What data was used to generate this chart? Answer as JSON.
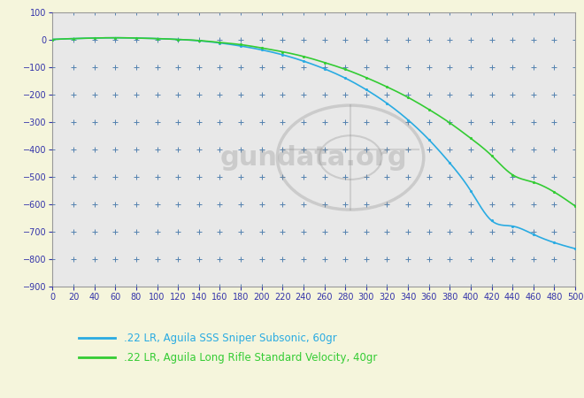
{
  "background_color": "#f5f5dc",
  "plot_bg_color": "#e8e8e8",
  "grid_color": "#4477aa",
  "xlim": [
    0,
    500
  ],
  "ylim": [
    -900,
    100
  ],
  "xticks": [
    0,
    20,
    40,
    60,
    80,
    100,
    120,
    140,
    160,
    180,
    200,
    220,
    240,
    260,
    280,
    300,
    320,
    340,
    360,
    380,
    400,
    420,
    440,
    460,
    480,
    500
  ],
  "yticks": [
    100,
    0,
    -100,
    -200,
    -300,
    -400,
    -500,
    -600,
    -700,
    -800,
    -900
  ],
  "line1_color": "#29abe2",
  "line2_color": "#33cc33",
  "line1_label": ".22 LR, Aguila SSS Sniper Subsonic, 60gr",
  "line2_label": ".22 LR, Aguila Long Rifle Standard Velocity, 40gr",
  "watermark_text": "gundata.org",
  "line1_x": [
    0,
    20,
    40,
    60,
    80,
    100,
    120,
    140,
    160,
    180,
    200,
    220,
    240,
    260,
    280,
    300,
    320,
    340,
    360,
    380,
    400,
    420,
    440,
    460,
    480,
    500
  ],
  "line1_y": [
    0,
    3,
    5,
    6,
    5,
    3,
    0,
    -5,
    -13,
    -24,
    -38,
    -56,
    -79,
    -107,
    -141,
    -183,
    -233,
    -293,
    -365,
    -450,
    -551,
    -660,
    -680,
    -710,
    -740,
    -762
  ],
  "line2_x": [
    0,
    20,
    40,
    60,
    80,
    100,
    120,
    140,
    160,
    180,
    200,
    220,
    240,
    260,
    280,
    300,
    320,
    340,
    360,
    380,
    400,
    420,
    440,
    460,
    480,
    500
  ],
  "line2_y": [
    0,
    3,
    5,
    6,
    5,
    3,
    0,
    -4,
    -11,
    -19,
    -31,
    -45,
    -62,
    -84,
    -109,
    -139,
    -173,
    -211,
    -255,
    -304,
    -360,
    -423,
    -493,
    -520,
    -556,
    -607
  ]
}
